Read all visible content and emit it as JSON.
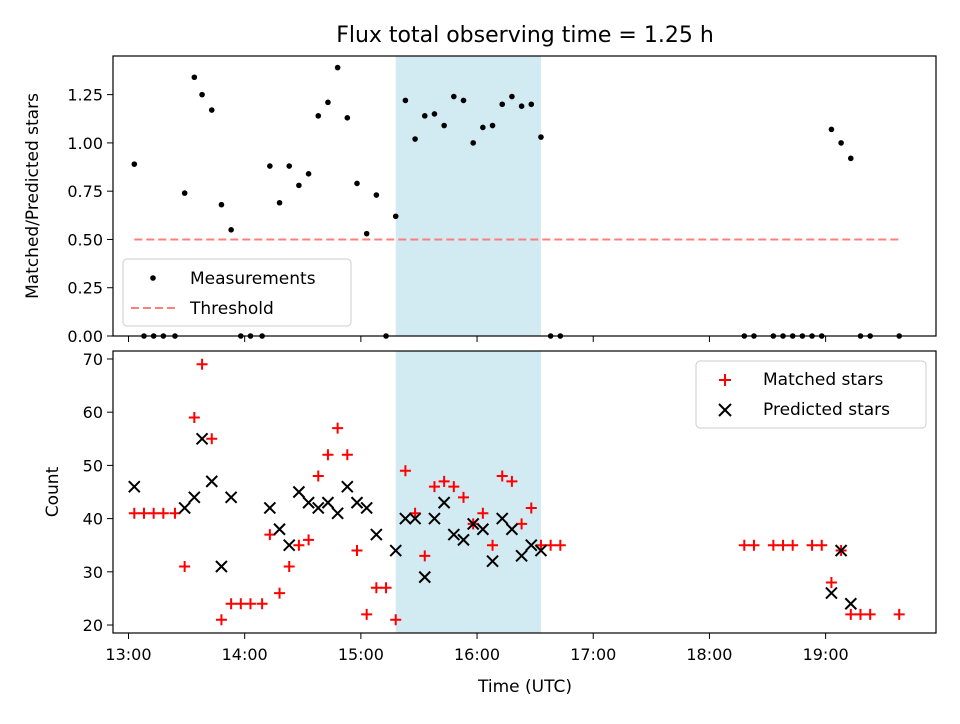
{
  "title": "Flux total observing time = 1.25 h",
  "colors": {
    "measurement": "#000000",
    "threshold": "#ff7f7f",
    "matched": "#ff0000",
    "predicted": "#000000",
    "highlight": "#add8e6"
  },
  "chart_data": [
    {
      "type": "scatter",
      "ylabel": "Matched/Predicted stars",
      "xlabel": "",
      "x_unit": "time (UTC)",
      "xlim": [
        "12:52",
        "19:57"
      ],
      "ylim": [
        0,
        1.45
      ],
      "xticks": [
        "13:00",
        "14:00",
        "15:00",
        "16:00",
        "17:00",
        "18:00",
        "19:00"
      ],
      "yticks": [
        0.0,
        0.25,
        0.5,
        0.75,
        1.0,
        1.25
      ],
      "ytick_labels": [
        "0.00",
        "0.25",
        "0.50",
        "0.75",
        "1.00",
        "1.25"
      ],
      "highlight_span": [
        "15:18",
        "16:33"
      ],
      "legend_position": "lower-left",
      "series": [
        {
          "name": "Measurements",
          "marker": "dot",
          "points": [
            [
              "13:03",
              0.89
            ],
            [
              "13:08",
              0.0
            ],
            [
              "13:13",
              0.0
            ],
            [
              "13:18",
              0.0
            ],
            [
              "13:24",
              0.0
            ],
            [
              "13:29",
              0.74
            ],
            [
              "13:34",
              1.34
            ],
            [
              "13:38",
              1.25
            ],
            [
              "13:43",
              1.17
            ],
            [
              "13:48",
              0.68
            ],
            [
              "13:53",
              0.55
            ],
            [
              "13:58",
              0.0
            ],
            [
              "14:03",
              0.0
            ],
            [
              "14:09",
              0.0
            ],
            [
              "14:13",
              0.88
            ],
            [
              "14:18",
              0.69
            ],
            [
              "14:23",
              0.88
            ],
            [
              "14:28",
              0.78
            ],
            [
              "14:33",
              0.84
            ],
            [
              "14:38",
              1.14
            ],
            [
              "14:43",
              1.21
            ],
            [
              "14:48",
              1.39
            ],
            [
              "14:53",
              1.13
            ],
            [
              "14:58",
              0.79
            ],
            [
              "15:03",
              0.53
            ],
            [
              "15:08",
              0.73
            ],
            [
              "15:13",
              0.0
            ],
            [
              "15:18",
              0.62
            ],
            [
              "15:23",
              1.22
            ],
            [
              "15:28",
              1.02
            ],
            [
              "15:33",
              1.14
            ],
            [
              "15:38",
              1.15
            ],
            [
              "15:43",
              1.09
            ],
            [
              "15:48",
              1.24
            ],
            [
              "15:53",
              1.22
            ],
            [
              "15:58",
              1.0
            ],
            [
              "16:03",
              1.08
            ],
            [
              "16:08",
              1.09
            ],
            [
              "16:13",
              1.2
            ],
            [
              "16:18",
              1.24
            ],
            [
              "16:23",
              1.19
            ],
            [
              "16:28",
              1.2
            ],
            [
              "16:33",
              1.03
            ],
            [
              "16:38",
              0.0
            ],
            [
              "16:43",
              0.0
            ],
            [
              "18:18",
              0.0
            ],
            [
              "18:23",
              0.0
            ],
            [
              "18:33",
              0.0
            ],
            [
              "18:38",
              0.0
            ],
            [
              "18:43",
              0.0
            ],
            [
              "18:48",
              0.0
            ],
            [
              "18:53",
              0.0
            ],
            [
              "18:58",
              0.0
            ],
            [
              "19:03",
              1.07
            ],
            [
              "19:08",
              1.0
            ],
            [
              "19:13",
              0.92
            ],
            [
              "19:18",
              0.0
            ],
            [
              "19:23",
              0.0
            ],
            [
              "19:38",
              0.0
            ]
          ]
        },
        {
          "name": "Threshold",
          "marker": "dashed-line",
          "points": [
            [
              "13:03",
              0.5
            ],
            [
              "19:38",
              0.5
            ]
          ]
        }
      ]
    },
    {
      "type": "scatter",
      "ylabel": "Count",
      "xlabel": "Time (UTC)",
      "x_unit": "time (UTC)",
      "xlim": [
        "12:52",
        "19:57"
      ],
      "ylim": [
        18.5,
        71.5
      ],
      "xticks": [
        "13:00",
        "14:00",
        "15:00",
        "16:00",
        "17:00",
        "18:00",
        "19:00"
      ],
      "yticks": [
        20,
        30,
        40,
        50,
        60,
        70
      ],
      "ytick_labels": [
        "20",
        "30",
        "40",
        "50",
        "60",
        "70"
      ],
      "highlight_span": [
        "15:18",
        "16:33"
      ],
      "legend_position": "upper-right",
      "series": [
        {
          "name": "Matched stars",
          "marker": "plus",
          "points": [
            [
              "13:03",
              41
            ],
            [
              "13:08",
              41
            ],
            [
              "13:13",
              41
            ],
            [
              "13:18",
              41
            ],
            [
              "13:24",
              41
            ],
            [
              "13:29",
              31
            ],
            [
              "13:34",
              59
            ],
            [
              "13:38",
              69
            ],
            [
              "13:43",
              55
            ],
            [
              "13:48",
              21
            ],
            [
              "13:53",
              24
            ],
            [
              "13:58",
              24
            ],
            [
              "14:03",
              24
            ],
            [
              "14:09",
              24
            ],
            [
              "14:13",
              37
            ],
            [
              "14:18",
              26
            ],
            [
              "14:23",
              31
            ],
            [
              "14:28",
              35
            ],
            [
              "14:33",
              36
            ],
            [
              "14:38",
              48
            ],
            [
              "14:43",
              52
            ],
            [
              "14:48",
              57
            ],
            [
              "14:53",
              52
            ],
            [
              "14:58",
              34
            ],
            [
              "15:03",
              22
            ],
            [
              "15:08",
              27
            ],
            [
              "15:13",
              27
            ],
            [
              "15:18",
              21
            ],
            [
              "15:23",
              49
            ],
            [
              "15:28",
              41
            ],
            [
              "15:33",
              33
            ],
            [
              "15:38",
              46
            ],
            [
              "15:43",
              47
            ],
            [
              "15:48",
              46
            ],
            [
              "15:53",
              44
            ],
            [
              "15:58",
              39
            ],
            [
              "16:03",
              41
            ],
            [
              "16:08",
              35
            ],
            [
              "16:13",
              48
            ],
            [
              "16:18",
              47
            ],
            [
              "16:23",
              39
            ],
            [
              "16:28",
              42
            ],
            [
              "16:33",
              35
            ],
            [
              "16:38",
              35
            ],
            [
              "16:43",
              35
            ],
            [
              "18:18",
              35
            ],
            [
              "18:23",
              35
            ],
            [
              "18:33",
              35
            ],
            [
              "18:38",
              35
            ],
            [
              "18:43",
              35
            ],
            [
              "18:53",
              35
            ],
            [
              "18:58",
              35
            ],
            [
              "19:03",
              28
            ],
            [
              "19:08",
              34
            ],
            [
              "19:13",
              22
            ],
            [
              "19:18",
              22
            ],
            [
              "19:23",
              22
            ],
            [
              "19:38",
              22
            ]
          ]
        },
        {
          "name": "Predicted stars",
          "marker": "x",
          "points": [
            [
              "13:03",
              46
            ],
            [
              "13:29",
              42
            ],
            [
              "13:34",
              44
            ],
            [
              "13:38",
              55
            ],
            [
              "13:43",
              47
            ],
            [
              "13:48",
              31
            ],
            [
              "13:53",
              44
            ],
            [
              "14:13",
              42
            ],
            [
              "14:18",
              38
            ],
            [
              "14:23",
              35
            ],
            [
              "14:28",
              45
            ],
            [
              "14:33",
              43
            ],
            [
              "14:38",
              42
            ],
            [
              "14:43",
              43
            ],
            [
              "14:48",
              41
            ],
            [
              "14:53",
              46
            ],
            [
              "14:58",
              43
            ],
            [
              "15:03",
              42
            ],
            [
              "15:08",
              37
            ],
            [
              "15:18",
              34
            ],
            [
              "15:23",
              40
            ],
            [
              "15:28",
              40
            ],
            [
              "15:33",
              29
            ],
            [
              "15:38",
              40
            ],
            [
              "15:43",
              43
            ],
            [
              "15:48",
              37
            ],
            [
              "15:53",
              36
            ],
            [
              "15:58",
              39
            ],
            [
              "16:03",
              38
            ],
            [
              "16:08",
              32
            ],
            [
              "16:13",
              40
            ],
            [
              "16:18",
              38
            ],
            [
              "16:23",
              33
            ],
            [
              "16:28",
              35
            ],
            [
              "16:33",
              34
            ],
            [
              "19:03",
              26
            ],
            [
              "19:08",
              34
            ],
            [
              "19:13",
              24
            ]
          ]
        }
      ]
    }
  ]
}
